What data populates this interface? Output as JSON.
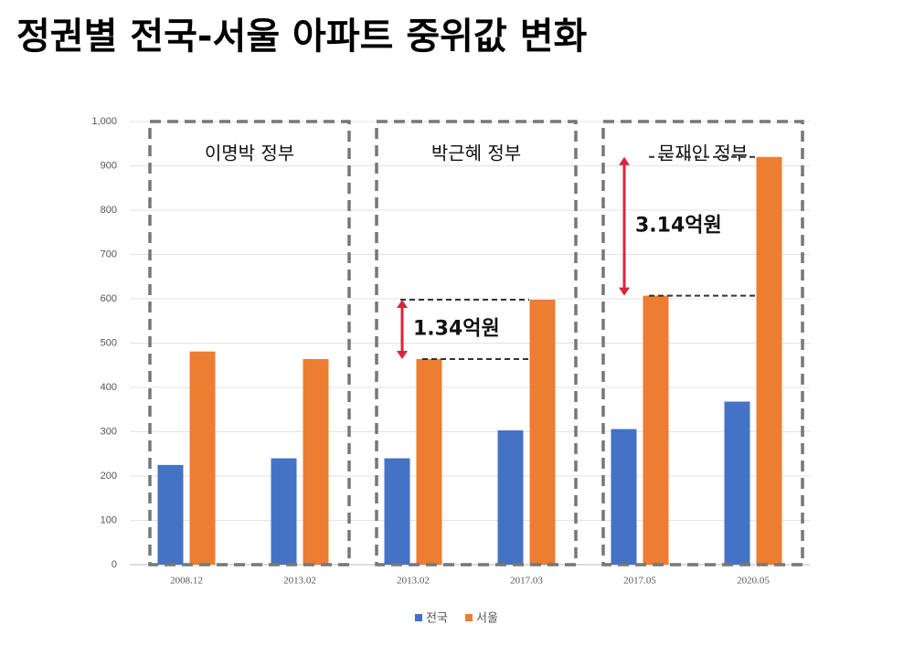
{
  "chart_data": {
    "type": "bar",
    "title": "정권별 전국-서울 아파트 중위값 변화",
    "categories": [
      "2008.12",
      "2013.02",
      "2013.02",
      "2017.03",
      "2017.05",
      "2020.05"
    ],
    "series": [
      {
        "name": "전국",
        "color": "#4472c4",
        "values": [
          225,
          240,
          240,
          303,
          306,
          368
        ]
      },
      {
        "name": "서울",
        "color": "#ed7d31",
        "values": [
          481,
          464,
          464,
          598,
          607,
          920
        ]
      }
    ],
    "groups": [
      "이명박 정부",
      "박근혜 정부",
      "문재인 정부"
    ],
    "annotations": [
      "1.34억원",
      "3.14억원"
    ],
    "ylim": [
      0,
      1000
    ],
    "yticks": [
      0,
      100,
      200,
      300,
      400,
      500,
      600,
      700,
      800,
      900,
      {
        "value": 1000,
        "label": "1,000"
      }
    ],
    "grid": true,
    "legend": "bottom"
  }
}
